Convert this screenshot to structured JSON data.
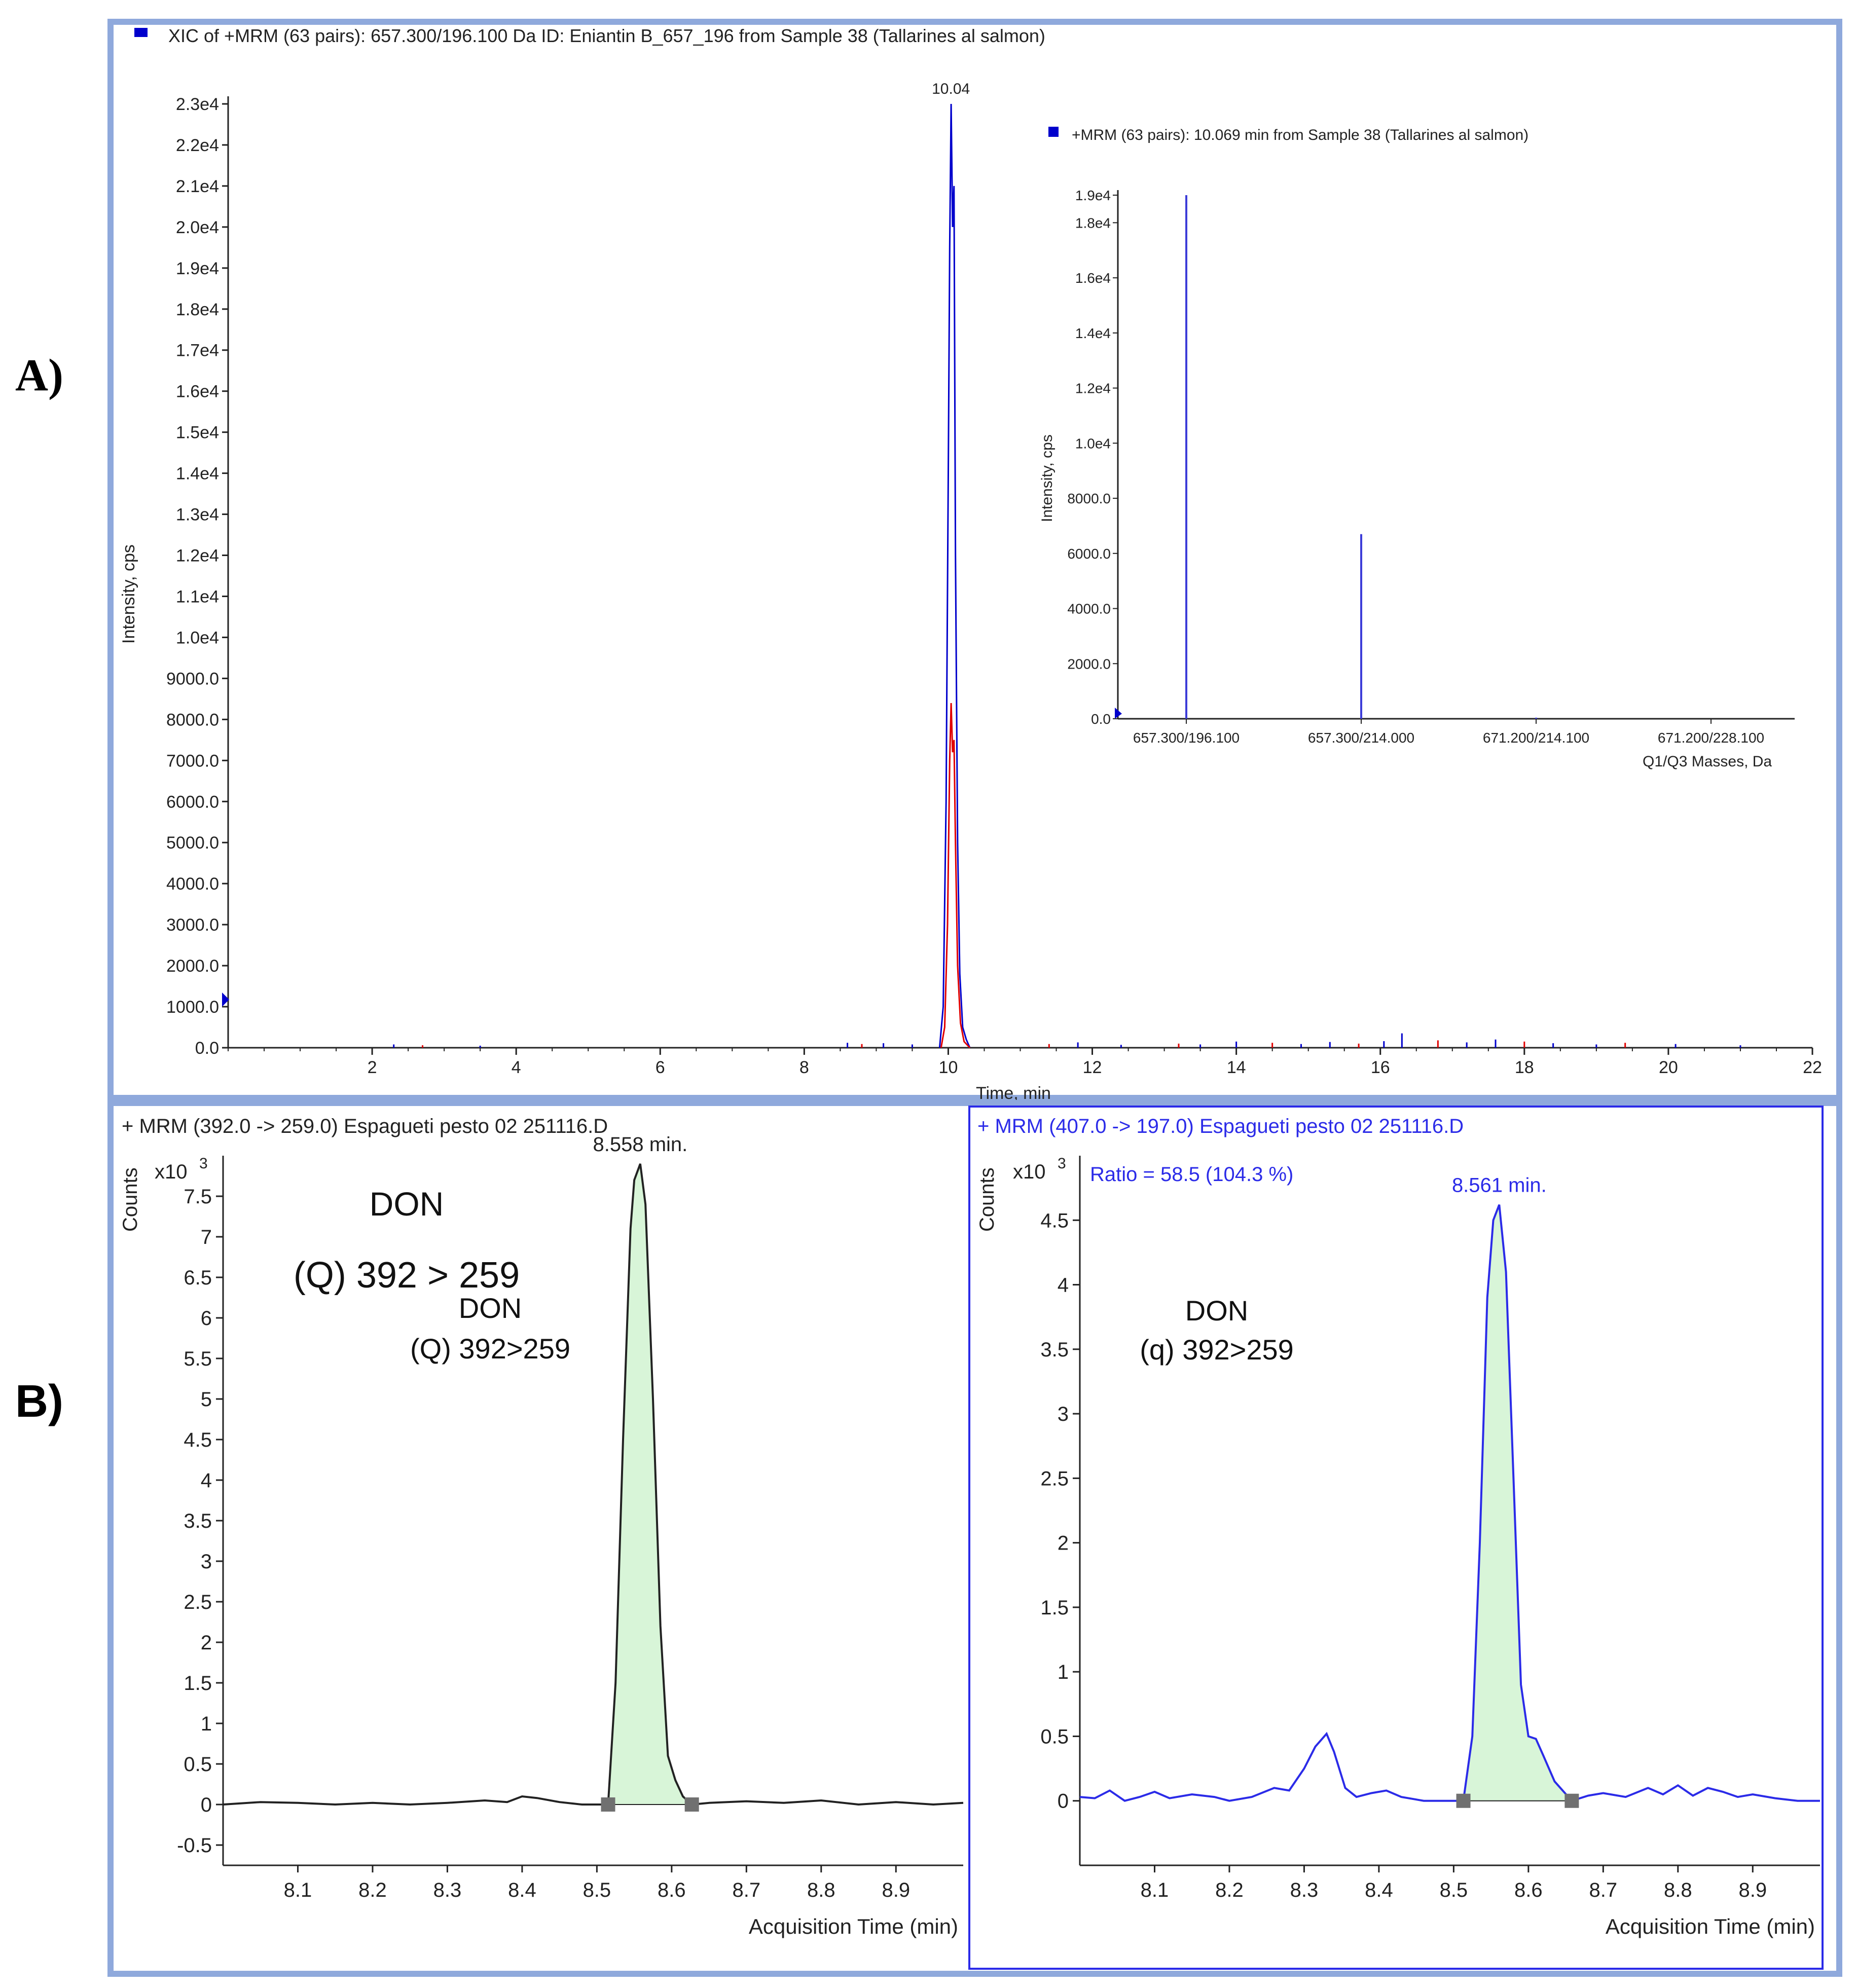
{
  "panel_labels": {
    "a": "A)",
    "b": "B)"
  },
  "colors": {
    "frame": "#8FA9DC",
    "blue": "#0000CC",
    "red": "#E00000",
    "dark": "#222222",
    "fill_green": "#D8F5D8",
    "b2_blue": "#2B2BE8",
    "square": "#707070"
  },
  "chart_data": [
    {
      "id": "A-main",
      "type": "line",
      "title": "XIC of +MRM (63 pairs): 657.300/196.100 Da ID: Eniantin B_657_196 from Sample 38 (Tallarines al salmon)",
      "xlabel": "Time, min",
      "ylabel": "Intensity, cps",
      "xlim": [
        0,
        22
      ],
      "ylim": [
        0,
        23000
      ],
      "x_ticks": [
        "2",
        "4",
        "6",
        "8",
        "10",
        "12",
        "14",
        "16",
        "18",
        "20",
        "22"
      ],
      "y_ticks": [
        "0.0",
        "1000.0",
        "2000.0",
        "3000.0",
        "4000.0",
        "5000.0",
        "6000.0",
        "7000.0",
        "8000.0",
        "9000.0",
        "1.0e4",
        "1.1e4",
        "1.2e4",
        "1.3e4",
        "1.4e4",
        "1.5e4",
        "1.6e4",
        "1.7e4",
        "1.8e4",
        "1.9e4",
        "2.0e4",
        "2.1e4",
        "2.2e4",
        "2.3e4"
      ],
      "peak_label": "10.04",
      "series": [
        {
          "name": "657.300/196.100",
          "color": "blue",
          "x": [
            9.88,
            9.93,
            9.97,
            10.0,
            10.02,
            10.04,
            10.06,
            10.08,
            10.1,
            10.13,
            10.16,
            10.2,
            10.25,
            10.3
          ],
          "y": [
            0,
            1000,
            6000,
            14000,
            19500,
            23000,
            20000,
            21000,
            12000,
            5000,
            1800,
            500,
            200,
            0
          ]
        },
        {
          "name": "657.300/214.000",
          "color": "red",
          "x": [
            9.9,
            9.95,
            9.99,
            10.02,
            10.04,
            10.06,
            10.08,
            10.1,
            10.13,
            10.17,
            10.22,
            10.3
          ],
          "y": [
            0,
            500,
            3000,
            7000,
            8400,
            7200,
            7500,
            5000,
            2000,
            600,
            150,
            0
          ]
        }
      ],
      "baseline_noise_x": [
        2.3,
        2.7,
        3.5,
        8.6,
        8.8,
        9.1,
        9.5,
        11.4,
        11.8,
        12.4,
        13.2,
        13.5,
        14.0,
        14.5,
        14.9,
        15.3,
        15.7,
        16.05,
        16.3,
        16.8,
        17.2,
        17.6,
        18.0,
        18.4,
        19.0,
        19.4,
        20.1,
        21.0
      ],
      "baseline_noise_y": [
        80,
        60,
        50,
        120,
        90,
        110,
        80,
        90,
        130,
        70,
        100,
        80,
        150,
        120,
        90,
        140,
        100,
        160,
        350,
        180,
        130,
        200,
        150,
        110,
        80,
        120,
        90,
        60
      ],
      "inset": {
        "type": "bar",
        "title": "+MRM (63 pairs): 10.069 min from Sample 38 (Tallarines al salmon)",
        "xlabel": "Q1/Q3 Masses, Da",
        "ylabel": "Intensity, cps",
        "categories": [
          "657.300/196.100",
          "657.300/214.000",
          "671.200/214.100",
          "671.200/228.100"
        ],
        "values": [
          19000,
          6700,
          40,
          0
        ],
        "ylim": [
          0,
          19000
        ],
        "y_ticks": [
          "0.0",
          "2000.0",
          "4000.0",
          "6000.0",
          "8000.0",
          "1.0e4",
          "1.2e4",
          "1.4e4",
          "1.6e4",
          "1.8e4",
          "1.9e4"
        ]
      }
    },
    {
      "id": "B-left",
      "type": "line",
      "title": "+ MRM (392.0 -> 259.0) Espagueti pesto 02 251116.D",
      "xlabel": "Acquisition Time (min)",
      "ylabel": "Counts",
      "y_multiplier": "x10",
      "y_exponent": "3",
      "xlim": [
        8.0,
        8.99
      ],
      "ylim": [
        -0.75,
        8.0
      ],
      "x_ticks": [
        "8.1",
        "8.2",
        "8.3",
        "8.4",
        "8.5",
        "8.6",
        "8.7",
        "8.8",
        "8.9"
      ],
      "y_ticks": [
        "-0.5",
        "0",
        "0.5",
        "1",
        "1.5",
        "2",
        "2.5",
        "3",
        "3.5",
        "4",
        "4.5",
        "5",
        "5.5",
        "6",
        "6.5",
        "7",
        "7.5"
      ],
      "peak_label": "8.558 min.",
      "annotations": {
        "a1": "DON",
        "a2": "(Q) 392 > 259",
        "a3": "DON",
        "a4": "(Q) 392>259"
      },
      "integration_bounds": [
        8.515,
        8.627
      ],
      "x": [
        8.0,
        8.05,
        8.1,
        8.15,
        8.2,
        8.25,
        8.3,
        8.35,
        8.38,
        8.4,
        8.42,
        8.45,
        8.48,
        8.5,
        8.515,
        8.525,
        8.535,
        8.545,
        8.55,
        8.558,
        8.565,
        8.575,
        8.585,
        8.595,
        8.605,
        8.615,
        8.627,
        8.65,
        8.7,
        8.75,
        8.8,
        8.85,
        8.9,
        8.95,
        8.99
      ],
      "y": [
        0,
        0.03,
        0.02,
        0.0,
        0.02,
        0.0,
        0.02,
        0.05,
        0.03,
        0.1,
        0.08,
        0.03,
        0.0,
        0.0,
        0.0,
        1.5,
        4.5,
        7.1,
        7.7,
        7.9,
        7.4,
        5.0,
        2.2,
        0.6,
        0.3,
        0.1,
        0.0,
        0.02,
        0.04,
        0.02,
        0.05,
        0.0,
        0.03,
        0.0,
        0.02
      ]
    },
    {
      "id": "B-right",
      "type": "line",
      "title": "+ MRM (407.0 -> 197.0) Espagueti pesto 02 251116.D",
      "xlabel": "Acquisition Time (min)",
      "ylabel": "Counts",
      "y_multiplier": "x10",
      "y_exponent": "3",
      "ratio_label": "Ratio = 58.5 (104.3 %)",
      "xlim": [
        8.0,
        8.99
      ],
      "ylim": [
        -0.5,
        5.0
      ],
      "x_ticks": [
        "8.1",
        "8.2",
        "8.3",
        "8.4",
        "8.5",
        "8.6",
        "8.7",
        "8.8",
        "8.9"
      ],
      "y_ticks": [
        "0",
        "0.5",
        "1",
        "1.5",
        "2",
        "2.5",
        "3",
        "3.5",
        "4",
        "4.5"
      ],
      "peak_label": "8.561 min.",
      "annotations": {
        "a1": "DON",
        "a2": "(q) 392>259"
      },
      "integration_bounds": [
        8.513,
        8.658
      ],
      "x": [
        8.0,
        8.02,
        8.04,
        8.06,
        8.08,
        8.1,
        8.12,
        8.15,
        8.18,
        8.2,
        8.23,
        8.26,
        8.28,
        8.3,
        8.315,
        8.33,
        8.34,
        8.355,
        8.37,
        8.39,
        8.41,
        8.43,
        8.46,
        8.49,
        8.513,
        8.525,
        8.535,
        8.545,
        8.553,
        8.561,
        8.57,
        8.58,
        8.59,
        8.6,
        8.61,
        8.62,
        8.635,
        8.658,
        8.68,
        8.7,
        8.73,
        8.76,
        8.78,
        8.8,
        8.82,
        8.84,
        8.86,
        8.88,
        8.9,
        8.93,
        8.96,
        8.99
      ],
      "y": [
        0.03,
        0.02,
        0.08,
        0.0,
        0.03,
        0.07,
        0.02,
        0.05,
        0.03,
        0.0,
        0.03,
        0.1,
        0.08,
        0.25,
        0.42,
        0.52,
        0.38,
        0.1,
        0.03,
        0.06,
        0.08,
        0.03,
        0.0,
        0.0,
        0.0,
        0.5,
        2.0,
        3.9,
        4.5,
        4.62,
        4.1,
        2.5,
        0.9,
        0.5,
        0.48,
        0.35,
        0.15,
        0.0,
        0.04,
        0.06,
        0.03,
        0.1,
        0.05,
        0.12,
        0.04,
        0.1,
        0.07,
        0.03,
        0.05,
        0.02,
        0.0,
        0.0
      ]
    }
  ]
}
